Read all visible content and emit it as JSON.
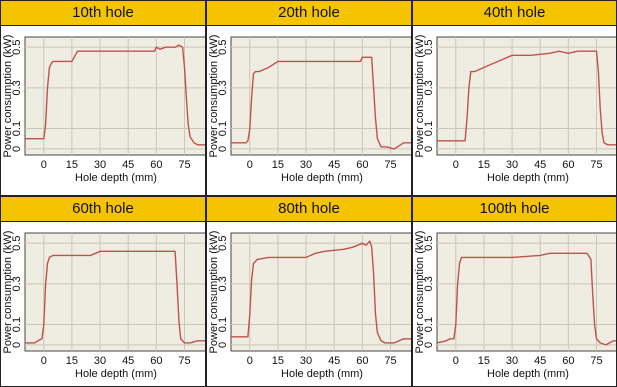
{
  "chart_data": [
    {
      "type": "line",
      "title": "10th hole",
      "xlabel": "Hole depth (mm)",
      "ylabel": "Power consumption (kW)",
      "xlim": [
        -10,
        87
      ],
      "ylim": [
        -0.03,
        0.55
      ],
      "xticks": [
        "0",
        "15",
        "30",
        "45",
        "60",
        "75"
      ],
      "yticks": [
        "0",
        "0.1",
        "0.3",
        "0.5"
      ],
      "series": [
        {
          "x": [
            -10,
            0,
            1,
            2,
            3,
            4,
            5,
            10,
            15,
            18,
            25,
            40,
            55,
            59,
            60,
            62,
            65,
            70,
            72,
            74,
            75,
            76,
            77,
            78,
            80,
            82,
            87
          ],
          "y": [
            0.05,
            0.05,
            0.12,
            0.3,
            0.4,
            0.42,
            0.43,
            0.43,
            0.43,
            0.48,
            0.48,
            0.48,
            0.48,
            0.48,
            0.5,
            0.49,
            0.5,
            0.5,
            0.51,
            0.5,
            0.4,
            0.25,
            0.12,
            0.06,
            0.03,
            0.02,
            0.02
          ]
        }
      ]
    },
    {
      "type": "line",
      "title": "20th hole",
      "xlabel": "Hole depth (mm)",
      "ylabel": "Power consumption (kW)",
      "xlim": [
        -10,
        87
      ],
      "ylim": [
        -0.03,
        0.55
      ],
      "xticks": [
        "0",
        "15",
        "30",
        "45",
        "60",
        "75"
      ],
      "yticks": [
        "0",
        "0.1",
        "0.3",
        "0.5"
      ],
      "series": [
        {
          "x": [
            -10,
            -4,
            -3,
            -2,
            -1,
            0,
            1,
            2,
            3,
            5,
            10,
            15,
            20,
            30,
            45,
            55,
            59,
            60,
            62,
            64,
            65,
            66,
            67,
            68,
            70,
            73,
            77,
            82,
            87
          ],
          "y": [
            0.03,
            0.03,
            0.03,
            0.03,
            0.04,
            0.1,
            0.25,
            0.37,
            0.38,
            0.38,
            0.4,
            0.43,
            0.43,
            0.43,
            0.43,
            0.43,
            0.43,
            0.45,
            0.45,
            0.45,
            0.45,
            0.3,
            0.15,
            0.05,
            0.01,
            0.01,
            0.0,
            0.03,
            0.03
          ]
        }
      ]
    },
    {
      "type": "line",
      "title": "40th hole",
      "xlabel": "Hole depth (mm)",
      "ylabel": "Power consumption (kW)",
      "xlim": [
        -10,
        87
      ],
      "ylim": [
        -0.03,
        0.55
      ],
      "xticks": [
        "0",
        "15",
        "30",
        "45",
        "60",
        "75"
      ],
      "yticks": [
        "0",
        "0.1",
        "0.3",
        "0.5"
      ],
      "series": [
        {
          "x": [
            -10,
            5,
            6,
            7,
            8,
            10,
            15,
            20,
            25,
            30,
            40,
            50,
            55,
            60,
            65,
            70,
            75,
            76,
            77,
            78,
            79,
            81,
            84,
            87
          ],
          "y": [
            0.04,
            0.04,
            0.15,
            0.3,
            0.38,
            0.38,
            0.4,
            0.42,
            0.44,
            0.46,
            0.46,
            0.47,
            0.48,
            0.47,
            0.48,
            0.48,
            0.48,
            0.38,
            0.2,
            0.08,
            0.03,
            0.02,
            0.02,
            0.02
          ]
        }
      ]
    },
    {
      "type": "line",
      "title": "60th hole",
      "xlabel": "Hole depth (mm)",
      "ylabel": "Power consumption (kW)",
      "xlim": [
        -10,
        87
      ],
      "ylim": [
        -0.03,
        0.55
      ],
      "xticks": [
        "0",
        "15",
        "30",
        "45",
        "60",
        "75"
      ],
      "yticks": [
        "0",
        "0.1",
        "0.3",
        "0.5"
      ],
      "series": [
        {
          "x": [
            -10,
            -5,
            -3,
            -1,
            0,
            1,
            2,
            3,
            5,
            15,
            25,
            30,
            40,
            50,
            60,
            68,
            70,
            71,
            72,
            73,
            75,
            78,
            82,
            87
          ],
          "y": [
            0.01,
            0.01,
            0.02,
            0.03,
            0.1,
            0.3,
            0.4,
            0.43,
            0.44,
            0.44,
            0.44,
            0.46,
            0.46,
            0.46,
            0.46,
            0.46,
            0.46,
            0.3,
            0.12,
            0.03,
            0.01,
            0.01,
            0.02,
            0.02
          ]
        }
      ]
    },
    {
      "type": "line",
      "title": "80th hole",
      "xlabel": "Hole depth (mm)",
      "ylabel": "Power consumption (kW)",
      "xlim": [
        -10,
        87
      ],
      "ylim": [
        -0.03,
        0.55
      ],
      "xticks": [
        "0",
        "15",
        "30",
        "45",
        "60",
        "75"
      ],
      "yticks": [
        "0",
        "0.1",
        "0.3",
        "0.5"
      ],
      "series": [
        {
          "x": [
            -10,
            -1,
            0,
            1,
            2,
            4,
            10,
            20,
            30,
            35,
            40,
            50,
            55,
            60,
            62,
            64,
            65,
            66,
            67,
            68,
            70,
            72,
            77,
            82,
            87
          ],
          "y": [
            0.04,
            0.04,
            0.15,
            0.32,
            0.4,
            0.42,
            0.43,
            0.43,
            0.43,
            0.45,
            0.46,
            0.47,
            0.48,
            0.5,
            0.49,
            0.51,
            0.48,
            0.35,
            0.15,
            0.06,
            0.02,
            0.01,
            0.01,
            0.03,
            0.03
          ]
        }
      ]
    },
    {
      "type": "line",
      "title": "100th hole",
      "xlabel": "Hole depth (mm)",
      "ylabel": "Power consumption (kW)",
      "xlim": [
        -10,
        87
      ],
      "ylim": [
        -0.03,
        0.55
      ],
      "xticks": [
        "0",
        "15",
        "30",
        "45",
        "60",
        "75"
      ],
      "yticks": [
        "0",
        "0.1",
        "0.3",
        "0.5"
      ],
      "series": [
        {
          "x": [
            -10,
            -5,
            -3,
            -1,
            0,
            1,
            2,
            3,
            5,
            15,
            30,
            45,
            50,
            60,
            70,
            72,
            73,
            74,
            75,
            77,
            80,
            84,
            87
          ],
          "y": [
            0.01,
            0.02,
            0.03,
            0.03,
            0.1,
            0.3,
            0.4,
            0.43,
            0.43,
            0.43,
            0.43,
            0.44,
            0.45,
            0.45,
            0.45,
            0.42,
            0.25,
            0.1,
            0.03,
            0.01,
            0.0,
            0.02,
            0.02
          ]
        }
      ]
    }
  ],
  "colors": {
    "header_bg": "#f5c400",
    "plot_bg": "#efece1",
    "grid": "#c9c6ba",
    "line": "#c0524d",
    "axis": "#444444"
  }
}
